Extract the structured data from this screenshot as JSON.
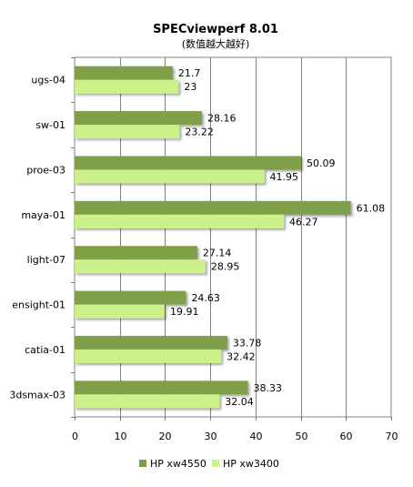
{
  "chart_data": {
    "type": "bar",
    "orientation": "horizontal",
    "title": "SPECviewperf 8.01",
    "subtitle": "(数值越大越好)",
    "categories": [
      "ugs-04",
      "sw-01",
      "proe-03",
      "maya-01",
      "light-07",
      "ensight-01",
      "catia-01",
      "3dsmax-03"
    ],
    "series": [
      {
        "name": "HP xw4550",
        "color": "#7f9f4a",
        "values": [
          21.7,
          28.16,
          50.09,
          61.08,
          27.14,
          24.63,
          33.78,
          38.33
        ]
      },
      {
        "name": "HP xw3400",
        "color": "#ccf08a",
        "values": [
          23,
          23.22,
          41.95,
          46.27,
          28.95,
          19.91,
          32.42,
          32.04
        ]
      }
    ],
    "data_labels": [
      [
        "21.7",
        "28.16",
        "50.09",
        "61.08",
        "27.14",
        "24.63",
        "33.78",
        "38.33"
      ],
      [
        "23",
        "23.22",
        "41.95",
        "46.27",
        "28.95",
        "19.91",
        "32.42",
        "32.04"
      ]
    ],
    "xlim": [
      0,
      70
    ],
    "xticks": [
      0,
      10,
      20,
      30,
      40,
      50,
      60,
      70
    ],
    "xtick_labels": [
      "0",
      "10",
      "20",
      "30",
      "40",
      "50",
      "60",
      "70"
    ],
    "grid": "vertical",
    "legend": "bottom"
  }
}
